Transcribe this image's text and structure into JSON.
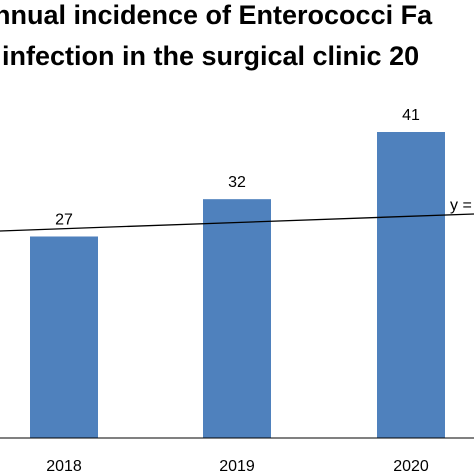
{
  "chart_data": {
    "type": "bar",
    "title_lines": [
      "nnual incidence of Enterococci Fa",
      "infection in the surgical clinic 20"
    ],
    "categories": [
      "2018",
      "2019",
      "2020"
    ],
    "values": [
      27,
      32,
      41
    ],
    "data_labels": [
      "27",
      "32",
      "41"
    ],
    "trendline": {
      "type": "linear",
      "label": "y ="
    },
    "ylim": [
      0,
      45
    ],
    "colors": {
      "bar": "#4f81bd",
      "trendline": "#000000",
      "axis": "#000000"
    },
    "grid": false,
    "legend": "none"
  }
}
